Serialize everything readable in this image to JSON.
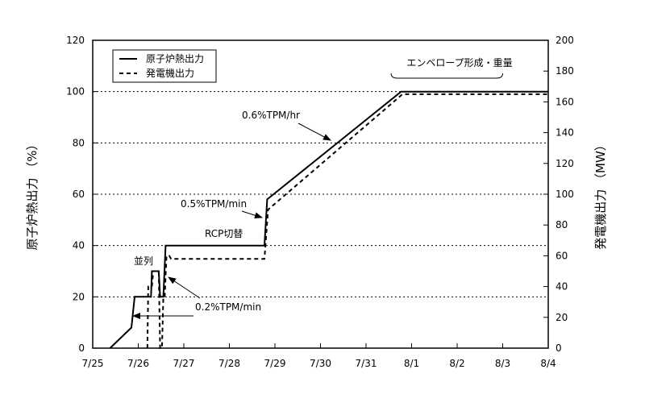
{
  "chart_data": {
    "type": "line",
    "title": "",
    "xlabel": "",
    "ylabel_left": "原子炉熱出力 （%）",
    "ylabel_right": "発電機出力 （MW）",
    "x_tick_labels": [
      "7/25",
      "7/26",
      "7/27",
      "7/28",
      "7/29",
      "7/30",
      "7/31",
      "8/1",
      "8/2",
      "8/3",
      "8/4"
    ],
    "x_range_days": [
      0,
      10
    ],
    "y_left_ticks": [
      0,
      20,
      40,
      60,
      80,
      100,
      120
    ],
    "y_left_range": [
      0,
      120
    ],
    "y_right_ticks": [
      0,
      20,
      40,
      60,
      80,
      100,
      120,
      140,
      160,
      180,
      200
    ],
    "y_right_range": [
      0,
      200
    ],
    "grid": "horizontal dotted",
    "legend": {
      "placement": "top-left",
      "entries": [
        {
          "label": "原子炉熱出力",
          "style": "solid"
        },
        {
          "label": "発電機出力",
          "style": "dashed"
        }
      ]
    },
    "series": [
      {
        "name": "原子炉熱出力",
        "axis": "left",
        "style": "solid",
        "points": [
          [
            0.38,
            0
          ],
          [
            0.85,
            8
          ],
          [
            0.92,
            20
          ],
          [
            1.28,
            20
          ],
          [
            1.3,
            30
          ],
          [
            1.45,
            30
          ],
          [
            1.48,
            20
          ],
          [
            1.55,
            20
          ],
          [
            1.6,
            40
          ],
          [
            3.77,
            40
          ],
          [
            3.83,
            58
          ],
          [
            6.77,
            100
          ],
          [
            10,
            100
          ]
        ]
      },
      {
        "name": "発電機出力",
        "axis": "right",
        "style": "dashed",
        "points": [
          [
            1.2,
            0
          ],
          [
            1.22,
            40
          ],
          [
            1.3,
            40
          ],
          [
            1.33,
            50
          ],
          [
            1.45,
            50
          ],
          [
            1.48,
            0
          ],
          [
            1.52,
            0
          ],
          [
            1.55,
            33
          ],
          [
            1.58,
            33
          ],
          [
            1.62,
            60
          ],
          [
            1.68,
            60
          ],
          [
            1.72,
            58
          ],
          [
            3.77,
            58
          ],
          [
            3.85,
            90
          ],
          [
            6.8,
            165
          ],
          [
            10,
            165
          ]
        ]
      }
    ],
    "annotations": [
      {
        "text": "0.6%TPM/hr",
        "arrow_to": [
          5.05,
          85
        ]
      },
      {
        "text": "0.5%TPM/min",
        "arrow_to": [
          3.8,
          54
        ]
      },
      {
        "text": "RCP切替",
        "arrow_to": null
      },
      {
        "text": "並列",
        "arrow_to": null
      },
      {
        "text": "0.2%TPM/min",
        "arrow_to": [
          1.6,
          28
        ]
      },
      {
        "text": "0.2%TPM/min",
        "arrow_to": [
          0.9,
          13
        ]
      }
    ],
    "bracket_label": "エンベロープ形成・重量",
    "bracket_range_days": [
      6.55,
      9.0
    ]
  }
}
